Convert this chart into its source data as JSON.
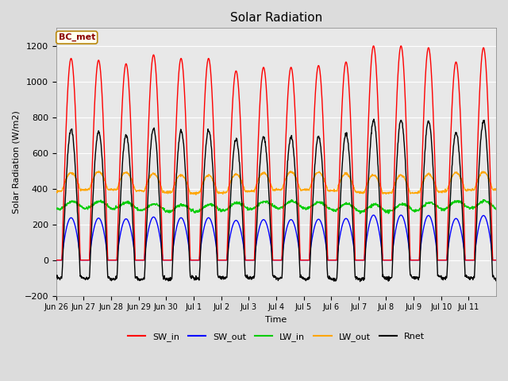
{
  "title": "Solar Radiation",
  "ylabel": "Solar Radiation (W/m2)",
  "xlabel": "Time",
  "ylim": [
    -200,
    1300
  ],
  "yticks": [
    -200,
    0,
    200,
    400,
    600,
    800,
    1000,
    1200
  ],
  "num_days": 16,
  "dt_hours": 0.25,
  "SW_in_color": "#FF0000",
  "SW_out_color": "#0000FF",
  "LW_in_color": "#00CC00",
  "LW_out_color": "#FFA500",
  "Rnet_color": "#000000",
  "legend_label": "BC_met",
  "xtick_labels": [
    "Jun 26",
    "Jun 27",
    "Jun 28",
    "Jun 29",
    "Jun 30",
    "Jul 1",
    "Jul 2",
    "Jul 3",
    "Jul 4",
    "Jul 5",
    "Jul 6",
    "Jul 7",
    "Jul 8",
    "Jul 9",
    "Jul 10",
    "Jul 11"
  ],
  "background_color": "#DCDCDC",
  "plot_bg_color": "#E8E8E8"
}
